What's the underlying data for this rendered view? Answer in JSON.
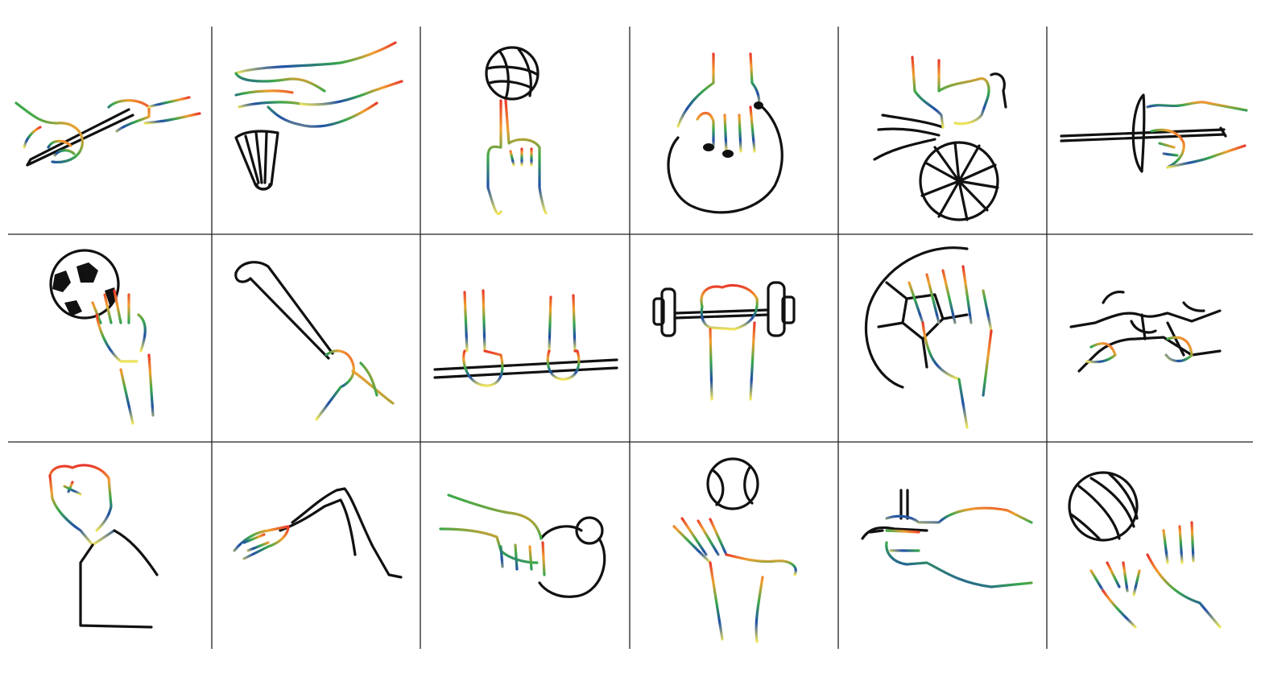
{
  "palette": {
    "ink": "#111111",
    "grid_line": "#222222",
    "gradient_stops": [
      "#e8382a",
      "#f0a030",
      "#3aa84a",
      "#1f4fa8",
      "#f2e65a"
    ]
  },
  "grid": {
    "rows": 3,
    "columns": 6
  },
  "tiles": [
    {
      "icon": "relay-baton-icon"
    },
    {
      "icon": "badminton-shuttlecock-icon"
    },
    {
      "icon": "basketball-spin-icon"
    },
    {
      "icon": "bowling-ball-icon"
    },
    {
      "icon": "cycling-wheel-icon"
    },
    {
      "icon": "fencing-foil-icon"
    },
    {
      "icon": "soccer-ball-hand-icon"
    },
    {
      "icon": "golf-club-icon"
    },
    {
      "icon": "high-bar-gymnastics-icon"
    },
    {
      "icon": "dumbbell-weightlifting-icon"
    },
    {
      "icon": "handball-icon"
    },
    {
      "icon": "judo-belt-icon"
    },
    {
      "icon": "raised-fist-icon"
    },
    {
      "icon": "swimming-arm-icon"
    },
    {
      "icon": "shot-put-icon"
    },
    {
      "icon": "tennis-ball-catch-icon"
    },
    {
      "icon": "archery-release-icon"
    },
    {
      "icon": "volleyball-hands-icon"
    }
  ]
}
